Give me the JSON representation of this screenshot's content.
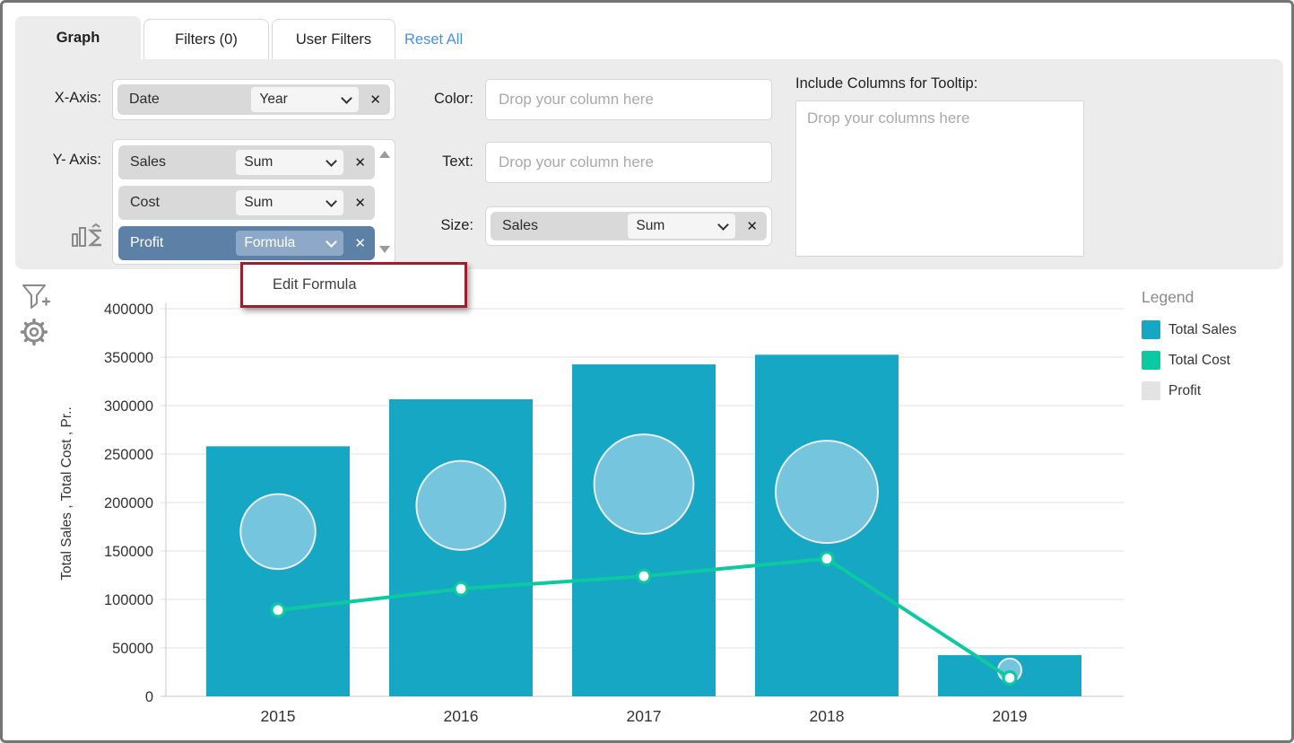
{
  "tabs": {
    "graph": "Graph",
    "filters": "Filters (0)",
    "user_filters": "User Filters",
    "reset_all": "Reset All"
  },
  "config": {
    "x_axis": {
      "label": "X-Axis:",
      "field": "Date",
      "aggregation": "Year"
    },
    "y_axis": {
      "label": "Y- Axis:",
      "fields": [
        {
          "name": "Sales",
          "aggregation": "Sum"
        },
        {
          "name": "Cost",
          "aggregation": "Sum"
        },
        {
          "name": "Profit",
          "aggregation": "Formula"
        }
      ]
    },
    "color": {
      "label": "Color:",
      "placeholder": "Drop your column here"
    },
    "text": {
      "label": "Text:",
      "placeholder": "Drop your column here"
    },
    "size": {
      "label": "Size:",
      "field": "Sales",
      "aggregation": "Sum"
    },
    "tooltip": {
      "label": "Include Columns for Tooltip:",
      "placeholder": "Drop your columns here"
    }
  },
  "context_menu": {
    "edit_formula": "Edit Formula",
    "border_color": "#9e1e2d"
  },
  "icons": {
    "close": "✕"
  },
  "legend": {
    "title": "Legend",
    "items": [
      {
        "label": "Total Sales",
        "color": "#16a7c5"
      },
      {
        "label": "Total Cost",
        "color": "#0cc9a1"
      },
      {
        "label": "Profit",
        "color": "#e3e3e3"
      }
    ]
  },
  "chart_data": {
    "type": "combo",
    "categories": [
      "2015",
      "2016",
      "2017",
      "2018",
      "2019"
    ],
    "series": [
      {
        "name": "Total Sales",
        "type": "bar",
        "color": "#16a7c5",
        "values": [
          258000,
          306500,
          342500,
          352500,
          42500
        ]
      },
      {
        "name": "Total Cost",
        "type": "line",
        "color": "#0cc9a1",
        "values": [
          89000,
          111000,
          124000,
          142000,
          19000
        ]
      },
      {
        "name": "Profit",
        "type": "bubble",
        "color": "#7dc8de",
        "values": [
          170000,
          197000,
          219000,
          211000,
          27000
        ],
        "size_by": "Sales",
        "sizes": [
          258000,
          306500,
          342500,
          352500,
          42500
        ]
      }
    ],
    "xlabel": "",
    "ylabel": "Total Sales , Total Cost , Pr..",
    "ylim": [
      0,
      400000
    ],
    "ytick_step": 50000,
    "grid": true,
    "legend_position": "right"
  }
}
